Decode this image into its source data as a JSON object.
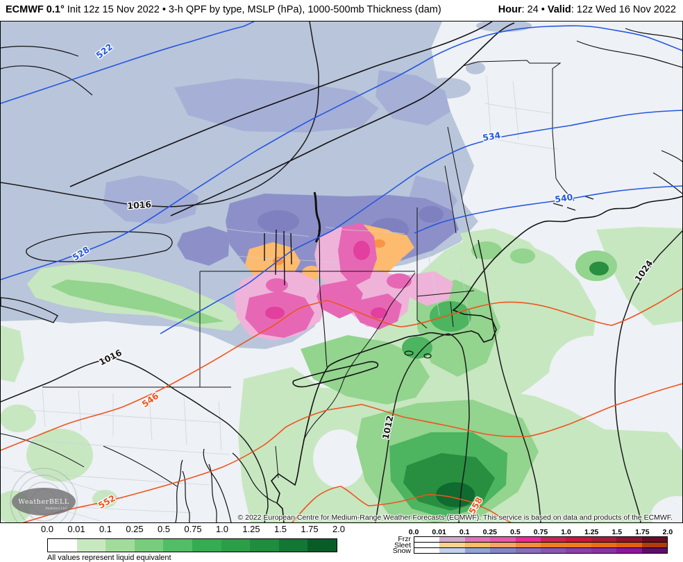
{
  "header": {
    "title_bold": "ECMWF 0.1°",
    "title_rest": " Init 12z 15 Nov 2022 • 3-h QPF by type, MSLP (hPa), 1000-500mb Thickness (dam)",
    "hour_label": "Hour",
    "hour_rest": ": 24 • ",
    "valid_label": "Valid",
    "valid_rest": ": 12z Wed 16 Nov 2022"
  },
  "map": {
    "copyright": "© 2022 European Centre for Medium-Range Weather Forecasts (ECMWF). This service is based on data and products of the ECMWF.",
    "watermark": {
      "line1": "WeatherBELL",
      "line2": "Analytics LLC"
    },
    "contour_labels": [
      {
        "text": "522",
        "kind": "thickness-blue"
      },
      {
        "text": "528",
        "kind": "thickness-blue"
      },
      {
        "text": "534",
        "kind": "thickness-blue"
      },
      {
        "text": "540",
        "kind": "thickness-blue"
      },
      {
        "text": "546",
        "kind": "thickness-red"
      },
      {
        "text": "552",
        "kind": "thickness-red"
      },
      {
        "text": "558",
        "kind": "thickness-red"
      },
      {
        "text": "1016",
        "kind": "mslp"
      },
      {
        "text": "1016",
        "kind": "mslp"
      },
      {
        "text": "1012",
        "kind": "mslp"
      },
      {
        "text": "1024",
        "kind": "mslp"
      }
    ],
    "palette": {
      "background": "#eef1f5",
      "snow_light": "#b9c5da",
      "snow_med": "#a6afd6",
      "snow_heavy": "#8d90c8",
      "snow_heavier": "#7e80bf",
      "rain_1": "#c7e7c0",
      "rain_2": "#93d48e",
      "rain_3": "#4db460",
      "rain_4": "#278f3f",
      "rain_5": "#0f6b2f",
      "sleet_1": "#fdbb70",
      "sleet_2": "#f79447",
      "frz_1": "#efb3da",
      "frz_2": "#e668b5",
      "frz_3": "#e23f9e",
      "contour_blue": "#2457e0",
      "contour_red": "#f0531e",
      "contour_black": "#1a1a1a",
      "county_gray": "#ccd1da"
    }
  },
  "legend": {
    "qpf": {
      "ticks": [
        "0.0",
        "0.01",
        "0.1",
        "0.25",
        "0.5",
        "0.75",
        "1.0",
        "1.25",
        "1.5",
        "1.75",
        "2.0"
      ],
      "colors": [
        "#ffffff",
        "#c8e9c0",
        "#a1dc9b",
        "#77cd7c",
        "#52bd66",
        "#35ab52",
        "#2d9e48",
        "#1f8c3e",
        "#147634",
        "#0a5c27"
      ],
      "note": "All values represent liquid equivalent"
    },
    "ptype": {
      "ticks": [
        "0.0",
        "0.01",
        "0.1",
        "0.25",
        "0.5",
        "0.75",
        "1.0",
        "1.25",
        "1.5",
        "1.75",
        "2.0"
      ],
      "rows": [
        {
          "label": "Frzr",
          "colors": [
            "#ffffff",
            "#d5a9cf",
            "#e272b8",
            "#e957ac",
            "#ee2a9b",
            "#cc2256",
            "#cf1440",
            "#ab1a3c",
            "#8f1233",
            "#6d0a26"
          ]
        },
        {
          "label": "Sleet",
          "colors": [
            "#ffffff",
            "#fbd28e",
            "#fcbd63",
            "#f8a467",
            "#f68d3e",
            "#f07d21",
            "#ee7b1e",
            "#e96d15",
            "#e0600e",
            "#b13d0a"
          ]
        },
        {
          "label": "Snow",
          "colors": [
            "#ffffff",
            "#c2d2ea",
            "#93a3d4",
            "#8486c4",
            "#8a6cb8",
            "#8957b0",
            "#8a41a8",
            "#8b32a2",
            "#8c189b",
            "#5c0f68"
          ]
        }
      ]
    }
  }
}
